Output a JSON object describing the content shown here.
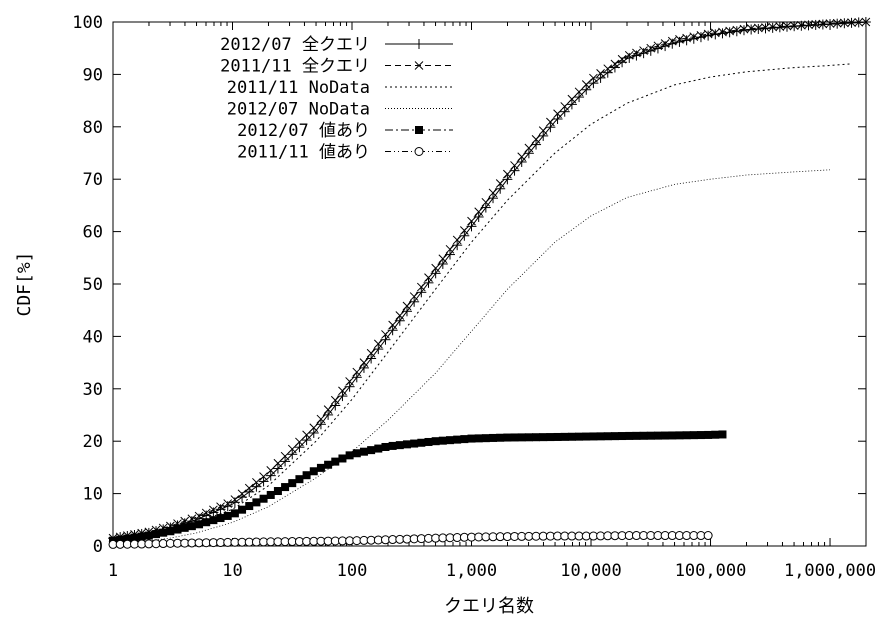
{
  "chart_data": {
    "type": "line",
    "xlabel": "クエリ名数",
    "ylabel": "CDF[%]",
    "x_scale": "log",
    "xlim": [
      1,
      2000000
    ],
    "ylim": [
      0,
      100
    ],
    "grid": false,
    "legend_position": "top-left",
    "x_ticks": [
      {
        "value": 1,
        "label": "1"
      },
      {
        "value": 10,
        "label": "10"
      },
      {
        "value": 100,
        "label": "100"
      },
      {
        "value": 1000,
        "label": "1,000"
      },
      {
        "value": 10000,
        "label": "10,000"
      },
      {
        "value": 100000,
        "label": "100,000"
      },
      {
        "value": 1000000,
        "label": "1,000,000"
      }
    ],
    "y_ticks": [
      {
        "value": 0,
        "label": "0"
      },
      {
        "value": 10,
        "label": "10"
      },
      {
        "value": 20,
        "label": "20"
      },
      {
        "value": 30,
        "label": "30"
      },
      {
        "value": 40,
        "label": "40"
      },
      {
        "value": 50,
        "label": "50"
      },
      {
        "value": 60,
        "label": "60"
      },
      {
        "value": 70,
        "label": "70"
      },
      {
        "value": 80,
        "label": "80"
      },
      {
        "value": 90,
        "label": "90"
      },
      {
        "value": 100,
        "label": "100"
      }
    ],
    "series": [
      {
        "name": "2012/07 全クエリ",
        "line": "solid",
        "marker": "plus",
        "x": [
          1,
          2,
          3,
          5,
          10,
          20,
          50,
          100,
          200,
          500,
          1000,
          2000,
          5000,
          10000,
          20000,
          50000,
          100000,
          200000,
          500000,
          1000000,
          2000000
        ],
        "y": [
          1.5,
          2.5,
          3.5,
          5,
          8,
          13,
          22,
          31,
          40,
          52,
          61,
          70,
          81,
          88,
          93,
          96,
          97.5,
          98.5,
          99.2,
          99.6,
          100
        ]
      },
      {
        "name": "2011/11 全クエリ",
        "line": "dashed",
        "marker": "cross",
        "x": [
          1,
          2,
          3,
          5,
          10,
          20,
          50,
          100,
          200,
          500,
          1000,
          2000,
          5000,
          10000,
          20000,
          50000,
          100000,
          200000,
          500000,
          1000000,
          2000000
        ],
        "y": [
          1.5,
          2.7,
          3.8,
          5.5,
          8.5,
          14,
          23,
          32,
          41,
          53,
          62,
          71,
          82,
          89,
          93.5,
          96.5,
          97.8,
          98.7,
          99.3,
          99.7,
          100
        ]
      },
      {
        "name": "2011/11 NoData",
        "line": "dotted",
        "marker": "none",
        "x": [
          1,
          2,
          3,
          5,
          10,
          20,
          50,
          100,
          200,
          500,
          1000,
          2000,
          5000,
          10000,
          20000,
          50000,
          100000,
          200000,
          500000,
          1000000,
          1500000
        ],
        "y": [
          1.2,
          2.2,
          3,
          4.5,
          7,
          11.5,
          20,
          28,
          37,
          49,
          58,
          66,
          75,
          80.5,
          84.5,
          88,
          89.5,
          90.5,
          91.3,
          91.7,
          92
        ]
      },
      {
        "name": "2012/07 NoData",
        "line": "dotted-fine",
        "marker": "none",
        "x": [
          1,
          2,
          3,
          5,
          10,
          20,
          50,
          100,
          200,
          500,
          1000,
          2000,
          5000,
          10000,
          20000,
          50000,
          100000,
          200000,
          500000,
          1000000
        ],
        "y": [
          0.5,
          1,
          1.5,
          2.5,
          4.5,
          7.5,
          13,
          18,
          24,
          33,
          41,
          49,
          58,
          63,
          66.5,
          69,
          70,
          70.8,
          71.4,
          71.8
        ]
      },
      {
        "name": "2012/07 値あり",
        "line": "dash-dot",
        "marker": "filled-square",
        "x": [
          1,
          2,
          3,
          5,
          10,
          20,
          50,
          100,
          200,
          500,
          1000,
          2000,
          5000,
          10000,
          20000,
          50000,
          100000,
          130000
        ],
        "y": [
          1,
          2,
          2.8,
          4,
          6,
          9.5,
          14.5,
          17.5,
          19,
          20,
          20.5,
          20.7,
          20.8,
          20.9,
          21,
          21.1,
          21.2,
          21.3
        ]
      },
      {
        "name": "2011/11 値あり",
        "line": "dash-dot-dot",
        "marker": "open-circle",
        "x": [
          1,
          2,
          3,
          5,
          10,
          20,
          50,
          100,
          200,
          500,
          1000,
          2000,
          5000,
          10000,
          20000,
          50000,
          100000
        ],
        "y": [
          0.3,
          0.4,
          0.5,
          0.6,
          0.7,
          0.8,
          0.9,
          1.0,
          1.2,
          1.5,
          1.7,
          1.8,
          1.9,
          1.9,
          2.0,
          2.0,
          2.0
        ]
      }
    ]
  }
}
